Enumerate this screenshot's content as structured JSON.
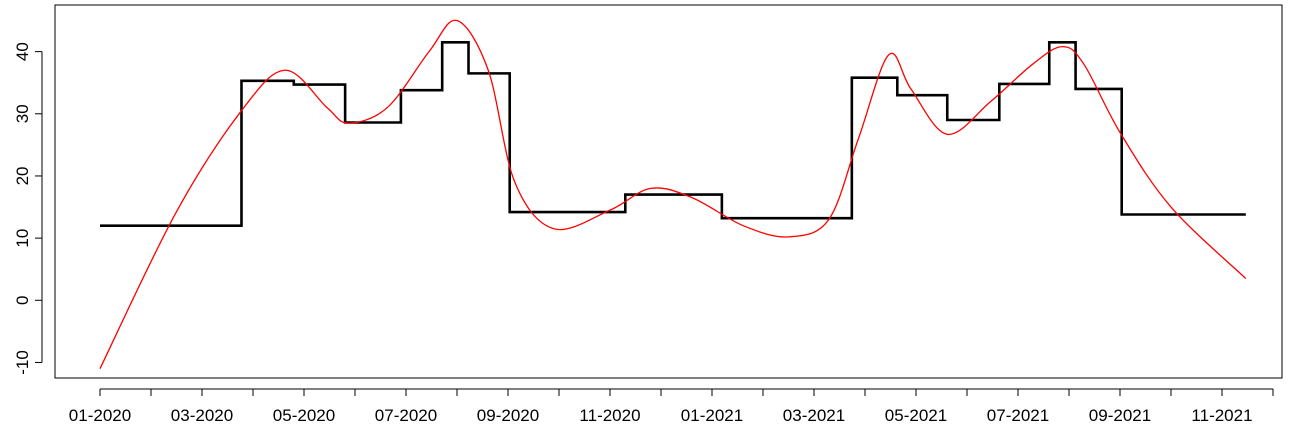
{
  "chart_data": {
    "type": "line",
    "title": "",
    "xlabel": "",
    "ylabel": "",
    "x_tick_labels": [
      "01-2020",
      "03-2020",
      "05-2020",
      "07-2020",
      "09-2020",
      "11-2020",
      "01-2021",
      "03-2021",
      "05-2021",
      "07-2021",
      "09-2021",
      "11-2021"
    ],
    "x_minor_tick_months": [
      "02-2020",
      "04-2020",
      "06-2020",
      "08-2020",
      "10-2020",
      "12-2020",
      "02-2021",
      "04-2021",
      "06-2021",
      "08-2021",
      "10-2021",
      "12-2021"
    ],
    "y_ticks": [
      -10,
      0,
      10,
      20,
      30,
      40
    ],
    "ylim": [
      -12.5,
      47.5
    ],
    "xlim": [
      "2019-12",
      "2021-12"
    ],
    "grid": false,
    "series": [
      {
        "style": "step",
        "color": "#000000",
        "points": [
          {
            "x": "2020-01-01",
            "y": 12
          },
          {
            "x": "2020-03-25",
            "y": 35.3
          },
          {
            "x": "2020-04-25",
            "y": 34.7
          },
          {
            "x": "2020-05-26",
            "y": 28.6
          },
          {
            "x": "2020-06-28",
            "y": 33.8
          },
          {
            "x": "2020-07-23",
            "y": 41.5
          },
          {
            "x": "2020-08-08",
            "y": 36.5
          },
          {
            "x": "2020-09-02",
            "y": 14.2
          },
          {
            "x": "2020-11-10",
            "y": 17.0
          },
          {
            "x": "2021-01-07",
            "y": 13.2
          },
          {
            "x": "2021-03-24",
            "y": 35.8
          },
          {
            "x": "2021-04-20",
            "y": 33.0
          },
          {
            "x": "2021-05-20",
            "y": 29.0
          },
          {
            "x": "2021-06-20",
            "y": 34.8
          },
          {
            "x": "2021-07-20",
            "y": 41.5
          },
          {
            "x": "2021-08-05",
            "y": 34.0
          },
          {
            "x": "2021-09-02",
            "y": 13.8
          },
          {
            "x": "2021-11-15",
            "y": 13.8
          }
        ]
      },
      {
        "style": "smooth",
        "color": "#ff0000",
        "points": [
          {
            "x": "2020-01-01",
            "y": -11
          },
          {
            "x": "2020-02-15",
            "y": 14
          },
          {
            "x": "2020-03-25",
            "y": 30.5
          },
          {
            "x": "2020-04-20",
            "y": 37
          },
          {
            "x": "2020-05-15",
            "y": 31
          },
          {
            "x": "2020-05-28",
            "y": 28.5
          },
          {
            "x": "2020-06-20",
            "y": 31
          },
          {
            "x": "2020-07-15",
            "y": 40
          },
          {
            "x": "2020-08-01",
            "y": 45
          },
          {
            "x": "2020-08-20",
            "y": 37
          },
          {
            "x": "2020-09-05",
            "y": 19
          },
          {
            "x": "2020-09-28",
            "y": 11.5
          },
          {
            "x": "2020-11-01",
            "y": 14.5
          },
          {
            "x": "2020-11-25",
            "y": 18
          },
          {
            "x": "2020-12-20",
            "y": 16.5
          },
          {
            "x": "2021-01-20",
            "y": 12
          },
          {
            "x": "2021-02-15",
            "y": 10.2
          },
          {
            "x": "2021-03-10",
            "y": 13
          },
          {
            "x": "2021-03-28",
            "y": 26
          },
          {
            "x": "2021-04-15",
            "y": 39.5
          },
          {
            "x": "2021-04-28",
            "y": 34
          },
          {
            "x": "2021-05-20",
            "y": 26.7
          },
          {
            "x": "2021-06-15",
            "y": 32
          },
          {
            "x": "2021-07-10",
            "y": 38
          },
          {
            "x": "2021-07-28",
            "y": 40.8
          },
          {
            "x": "2021-08-10",
            "y": 38
          },
          {
            "x": "2021-09-01",
            "y": 27
          },
          {
            "x": "2021-10-01",
            "y": 15
          },
          {
            "x": "2021-11-15",
            "y": 3.5
          }
        ]
      }
    ]
  }
}
